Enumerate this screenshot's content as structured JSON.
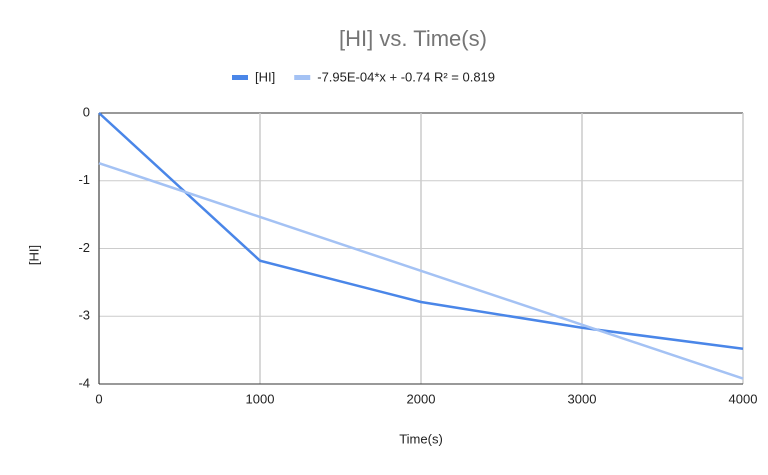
{
  "chart_data": {
    "type": "line",
    "title": "[HI] vs. Time(s)",
    "x_label": "Time(s)",
    "y_label": "[HI]",
    "series": [
      {
        "name": "[HI]",
        "color": "#4a86e8",
        "x": [
          0,
          1000,
          2000,
          3000,
          4000
        ],
        "values": [
          0,
          -2.18,
          -2.79,
          -3.17,
          -3.48
        ]
      },
      {
        "name": "-7.95E-04*x + -0.74 R² = 0.819",
        "color": "#a4c2f4",
        "x": [
          0,
          4000
        ],
        "values": [
          -0.74,
          -3.92
        ]
      }
    ],
    "xlim": [
      0,
      4000
    ],
    "xticks": [
      0,
      1000,
      2000,
      3000,
      4000
    ],
    "ylim": [
      -4,
      0
    ],
    "yticks": [
      -4,
      -3,
      -2,
      -1,
      0
    ],
    "grid": true,
    "legend": "top"
  }
}
